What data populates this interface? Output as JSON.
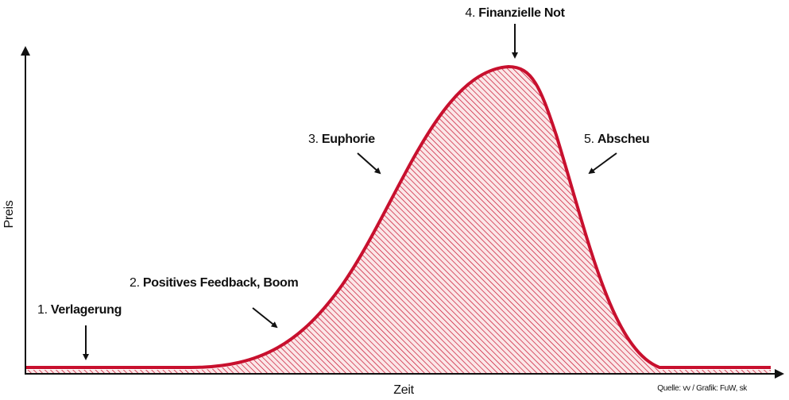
{
  "axes": {
    "y_label": "Preis",
    "x_label": "Zeit"
  },
  "phases": [
    {
      "number": "1.",
      "name": "Verlagerung"
    },
    {
      "number": "2.",
      "name": "Positives Feedback, Boom"
    },
    {
      "number": "3.",
      "name": "Euphorie"
    },
    {
      "number": "4.",
      "name": "Finanzielle Not"
    },
    {
      "number": "5.",
      "name": "Abscheu"
    }
  ],
  "source": "Quelle: vv / Grafik: FuW, sk"
}
